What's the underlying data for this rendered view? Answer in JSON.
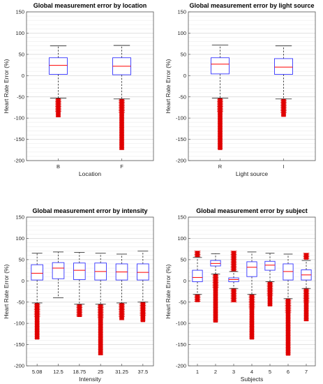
{
  "chart_data": [
    {
      "type": "box",
      "title": "Global measurement error by location",
      "xlabel": "Location",
      "ylabel": "Heart Rate Error (%)",
      "ylim": [
        -200,
        150
      ],
      "yticks": [
        150,
        100,
        50,
        0,
        -50,
        -100,
        -150,
        -200
      ],
      "grid": "horizontal",
      "categories": [
        "B",
        "F"
      ],
      "boxes": [
        {
          "q1": 3,
          "median": 24,
          "q3": 42,
          "whisker_low": -53,
          "whisker_high": 70,
          "outlier_low": [
            -98,
            -53
          ],
          "outlier_high": null
        },
        {
          "q1": 2,
          "median": 22,
          "q3": 42,
          "whisker_low": -55,
          "whisker_high": 71,
          "outlier_low": [
            -175,
            -55
          ],
          "outlier_high": null
        }
      ]
    },
    {
      "type": "box",
      "title": "Global measurement error by light source",
      "xlabel": "Light source",
      "ylabel": "Heart Rate Error (%)",
      "ylim": [
        -200,
        150
      ],
      "yticks": [
        150,
        100,
        50,
        0,
        -50,
        -100,
        -150,
        -200
      ],
      "grid": "horizontal",
      "categories": [
        "R",
        "I"
      ],
      "boxes": [
        {
          "q1": 4,
          "median": 27,
          "q3": 42,
          "whisker_low": -53,
          "whisker_high": 72,
          "outlier_low": [
            -175,
            -53
          ],
          "outlier_high": null
        },
        {
          "q1": 3,
          "median": 20,
          "q3": 40,
          "whisker_low": -55,
          "whisker_high": 70,
          "outlier_low": [
            -97,
            -55
          ],
          "outlier_high": null
        }
      ]
    },
    {
      "type": "box",
      "title": "Global measurement error by intensity",
      "xlabel": "Intensity",
      "ylabel": "Heart Rate Error (%)",
      "ylim": [
        -200,
        150
      ],
      "yticks": [
        150,
        100,
        50,
        0,
        -50,
        -100,
        -150,
        -200
      ],
      "grid": "horizontal",
      "categories": [
        "5.08",
        "12.5",
        "18.75",
        "25",
        "31.25",
        "37.5"
      ],
      "boxes": [
        {
          "q1": 2,
          "median": 18,
          "q3": 38,
          "whisker_low": -52,
          "whisker_high": 65,
          "outlier_low": [
            -138,
            -52
          ],
          "outlier_high": null
        },
        {
          "q1": 5,
          "median": 30,
          "q3": 43,
          "whisker_low": -40,
          "whisker_high": 68,
          "outlier_low": null,
          "outlier_high": null
        },
        {
          "q1": 3,
          "median": 25,
          "q3": 42,
          "whisker_low": -55,
          "whisker_high": 67,
          "outlier_low": [
            -85,
            -55
          ],
          "outlier_high": null
        },
        {
          "q1": 2,
          "median": 22,
          "q3": 42,
          "whisker_low": -55,
          "whisker_high": 65,
          "outlier_low": [
            -175,
            -55
          ],
          "outlier_high": null
        },
        {
          "q1": 2,
          "median": 21,
          "q3": 40,
          "whisker_low": -52,
          "whisker_high": 63,
          "outlier_low": [
            -92,
            -52
          ],
          "outlier_high": null
        },
        {
          "q1": 2,
          "median": 20,
          "q3": 40,
          "whisker_low": -50,
          "whisker_high": 70,
          "outlier_low": [
            -97,
            -50
          ],
          "outlier_high": null
        }
      ]
    },
    {
      "type": "box",
      "title": "Global measurement error by subject",
      "xlabel": "Subjects",
      "ylabel": "Heart Rate Error (%)",
      "ylim": [
        -200,
        150
      ],
      "yticks": [
        150,
        100,
        50,
        0,
        -50,
        -100,
        -150,
        -200
      ],
      "grid": "horizontal",
      "categories": [
        "1",
        "2",
        "3",
        "4",
        "5",
        "6",
        "7"
      ],
      "boxes": [
        {
          "q1": -2,
          "median": 8,
          "q3": 25,
          "whisker_low": -32,
          "whisker_high": 55,
          "outlier_low": [
            -50,
            -32
          ],
          "outlier_high": [
            56,
            70
          ]
        },
        {
          "q1": 35,
          "median": 41,
          "q3": 48,
          "whisker_low": 16,
          "whisker_high": 64,
          "outlier_low": [
            -98,
            16
          ],
          "outlier_high": null
        },
        {
          "q1": -2,
          "median": 3,
          "q3": 7,
          "whisker_low": -18,
          "whisker_high": 22,
          "outlier_low": [
            -50,
            -18
          ],
          "outlier_high": [
            22,
            70
          ]
        },
        {
          "q1": 10,
          "median": 32,
          "q3": 45,
          "whisker_low": -32,
          "whisker_high": 68,
          "outlier_low": [
            -138,
            -32
          ],
          "outlier_high": null
        },
        {
          "q1": 25,
          "median": 37,
          "q3": 46,
          "whisker_low": -2,
          "whisker_high": 65,
          "outlier_low": [
            -60,
            -2
          ],
          "outlier_high": null
        },
        {
          "q1": 2,
          "median": 22,
          "q3": 40,
          "whisker_low": -42,
          "whisker_high": 63,
          "outlier_low": [
            -176,
            -42
          ],
          "outlier_high": null
        },
        {
          "q1": 2,
          "median": 14,
          "q3": 26,
          "whisker_low": -18,
          "whisker_high": 48,
          "outlier_low": [
            -95,
            -18
          ],
          "outlier_high": [
            50,
            65
          ]
        }
      ]
    }
  ]
}
